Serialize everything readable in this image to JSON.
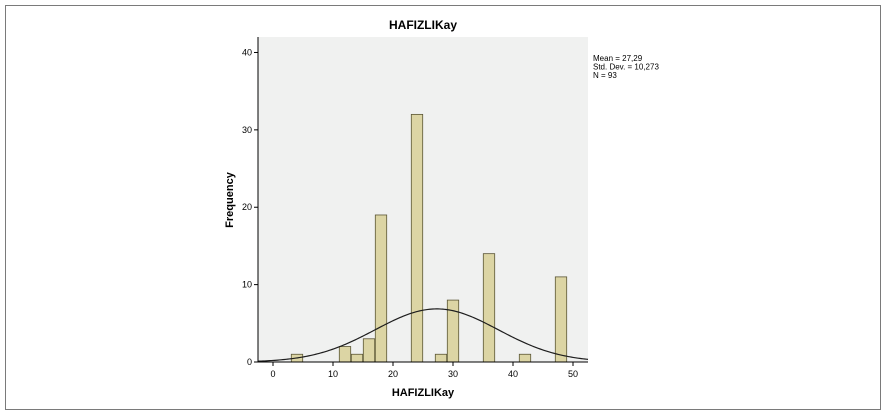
{
  "chart_data": {
    "type": "histogram",
    "title": "HAFIZLIKay",
    "xlabel": "HAFIZLIKay",
    "ylabel": "Frequency",
    "xlim": [
      -2.5,
      52.5
    ],
    "ylim": [
      0,
      42
    ],
    "xticks": [
      0,
      10,
      20,
      30,
      40,
      50
    ],
    "yticks": [
      0,
      10,
      20,
      30,
      40
    ],
    "bin_width": 1.9,
    "bins": [
      {
        "x": 4,
        "value": 1
      },
      {
        "x": 12,
        "value": 2
      },
      {
        "x": 14,
        "value": 1
      },
      {
        "x": 16,
        "value": 3
      },
      {
        "x": 18,
        "value": 19
      },
      {
        "x": 24,
        "value": 32
      },
      {
        "x": 28,
        "value": 1
      },
      {
        "x": 30,
        "value": 8
      },
      {
        "x": 36,
        "value": 14
      },
      {
        "x": 42,
        "value": 1
      },
      {
        "x": 48,
        "value": 11
      }
    ],
    "normal_curve": {
      "mean": 27.29,
      "sd": 10.273,
      "n": 93
    },
    "stats_text": [
      "Mean = 27,29",
      "Std. Dev. = 10,273",
      "N = 93"
    ],
    "colors": {
      "bar_fill": "#dcd5a4",
      "bar_stroke": "#5a5535",
      "plot_bg": "#f0f1f0",
      "curve": "#1e1e1e"
    }
  }
}
